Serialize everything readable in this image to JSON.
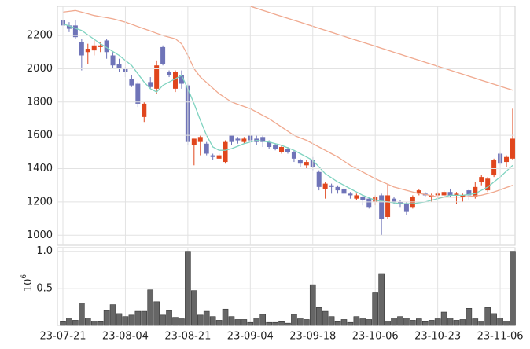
{
  "chart_data": [
    {
      "type": "candlestick",
      "ylim": [
        940,
        2375
      ],
      "yticks": [
        1000,
        1200,
        1400,
        1600,
        1800,
        2000,
        2200
      ],
      "grid": true,
      "up_color": "#e0461d",
      "down_color": "#6f74b8",
      "open": [
        2290,
        2260,
        2260,
        2160,
        2100,
        2110,
        2130,
        2170,
        2080,
        2030,
        2000,
        1940,
        1910,
        1710,
        1920,
        1880,
        2130,
        1980,
        1880,
        1960,
        1900,
        1540,
        1560,
        1550,
        1480,
        1460,
        1440,
        1600,
        1580,
        1560,
        1600,
        1580,
        1590,
        1560,
        1540,
        1500,
        1520,
        1500,
        1450,
        1420,
        1450,
        1380,
        1280,
        1300,
        1290,
        1280,
        1250,
        1220,
        1230,
        1220,
        1200,
        1240,
        1110,
        1220,
        1200,
        1190,
        1170,
        1250,
        1250,
        1230,
        1240,
        1240,
        1260,
        1240,
        1230,
        1270,
        1230,
        1320,
        1270,
        1360,
        1490,
        1440,
        1460
      ],
      "high": [
        2300,
        2280,
        2290,
        2180,
        2150,
        2170,
        2160,
        2180,
        2100,
        2060,
        2010,
        1960,
        1920,
        1800,
        1950,
        2050,
        2140,
        1990,
        1990,
        1990,
        1910,
        1580,
        1600,
        1560,
        1490,
        1490,
        1570,
        1600,
        1590,
        1590,
        1600,
        1600,
        1600,
        1570,
        1550,
        1540,
        1530,
        1510,
        1460,
        1450,
        1470,
        1390,
        1320,
        1310,
        1300,
        1290,
        1260,
        1250,
        1240,
        1230,
        1240,
        1250,
        1310,
        1230,
        1210,
        1200,
        1240,
        1280,
        1260,
        1250,
        1260,
        1270,
        1280,
        1260,
        1250,
        1280,
        1320,
        1360,
        1350,
        1460,
        1500,
        1480,
        1760
      ],
      "low": [
        2240,
        2220,
        2180,
        1990,
        2030,
        2080,
        2100,
        2060,
        2000,
        1980,
        1950,
        1890,
        1770,
        1680,
        1880,
        1850,
        2020,
        1950,
        1860,
        1880,
        1540,
        1420,
        1480,
        1480,
        1450,
        1460,
        1430,
        1540,
        1550,
        1550,
        1560,
        1540,
        1530,
        1520,
        1510,
        1490,
        1490,
        1440,
        1410,
        1400,
        1390,
        1270,
        1220,
        1250,
        1250,
        1230,
        1220,
        1210,
        1180,
        1160,
        1180,
        1000,
        1100,
        1190,
        1170,
        1120,
        1160,
        1240,
        1230,
        1200,
        1220,
        1230,
        1230,
        1190,
        1200,
        1210,
        1220,
        1300,
        1260,
        1350,
        1420,
        1410,
        1450
      ],
      "close": [
        2260,
        2240,
        2190,
        2080,
        2120,
        2140,
        2140,
        2100,
        2020,
        2000,
        1980,
        1900,
        1790,
        1790,
        1890,
        2020,
        2030,
        1960,
        1980,
        1910,
        1560,
        1580,
        1590,
        1490,
        1470,
        1480,
        1560,
        1560,
        1570,
        1580,
        1570,
        1560,
        1560,
        1530,
        1520,
        1530,
        1500,
        1460,
        1430,
        1440,
        1410,
        1290,
        1310,
        1290,
        1270,
        1250,
        1240,
        1240,
        1210,
        1170,
        1230,
        1100,
        1240,
        1200,
        1190,
        1140,
        1230,
        1270,
        1240,
        1240,
        1250,
        1260,
        1240,
        1250,
        1240,
        1240,
        1290,
        1350,
        1340,
        1450,
        1430,
        1470,
        1580
      ],
      "lines": [
        {
          "color": "#7fd3c0",
          "values": [
            2270,
            2257,
            2243,
            2230,
            2203,
            2177,
            2150,
            2127,
            2103,
            2080,
            2050,
            2020,
            1970,
            1920,
            1880,
            1860,
            1900,
            1920,
            1940,
            1960,
            1880,
            1790,
            1690,
            1600,
            1530,
            1510,
            1510,
            1520,
            1535,
            1550,
            1560,
            1570,
            1565,
            1560,
            1550,
            1540,
            1525,
            1510,
            1490,
            1470,
            1450,
            1410,
            1370,
            1345,
            1320,
            1300,
            1280,
            1260,
            1240,
            1225,
            1210,
            1205,
            1200,
            1195,
            1190,
            1190,
            1190,
            1195,
            1200,
            1210,
            1220,
            1230,
            1240,
            1240,
            1240,
            1245,
            1250,
            1270,
            1290,
            1320,
            1350,
            1385,
            1420
          ]
        },
        {
          "color": "#f0a98f",
          "values": [
            2340,
            2345,
            2350,
            2340,
            2330,
            2320,
            2313,
            2307,
            2300,
            2290,
            2280,
            2267,
            2253,
            2240,
            2227,
            2213,
            2200,
            2190,
            2180,
            2150,
            2080,
            2000,
            1950,
            1917,
            1883,
            1850,
            1825,
            1800,
            1787,
            1773,
            1760,
            1740,
            1720,
            1700,
            1675,
            1650,
            1625,
            1600,
            1585,
            1570,
            1550,
            1530,
            1510,
            1490,
            1470,
            1445,
            1420,
            1400,
            1380,
            1360,
            1340,
            1323,
            1307,
            1290,
            1280,
            1270,
            1260,
            1252,
            1245,
            1238,
            1230,
            1230,
            1230,
            1230,
            1230,
            1233,
            1237,
            1240,
            1250,
            1260,
            1273,
            1287,
            1300
          ]
        },
        {
          "color": "#f0a98f",
          "values": [
            null,
            null,
            null,
            null,
            null,
            null,
            null,
            null,
            null,
            null,
            null,
            null,
            null,
            null,
            null,
            null,
            null,
            null,
            null,
            null,
            null,
            null,
            null,
            null,
            null,
            null,
            null,
            null,
            null,
            null,
            2375,
            2363,
            2351,
            2339,
            2327,
            2315,
            2303,
            2291,
            2279,
            2267,
            2255,
            2243,
            2231,
            2219,
            2207,
            2195,
            2183,
            2171,
            2159,
            2147,
            2135,
            2123,
            2111,
            2099,
            2087,
            2075,
            2063,
            2051,
            2039,
            2027,
            2015,
            2003,
            1991,
            1979,
            1967,
            1955,
            1943,
            1931,
            1919,
            1907,
            1895,
            1883,
            1871
          ]
        }
      ]
    },
    {
      "type": "bar",
      "color": "#666666",
      "edge_color": "#333333",
      "y_multiplier": {
        "base": "10",
        "exponent": "6"
      },
      "ylim": [
        0,
        1.05
      ],
      "yticks": [
        0.5,
        {
          "value": 1,
          "label": "1.0"
        }
      ],
      "grid": true,
      "categories": [
        "23-07-21",
        null,
        null,
        null,
        null,
        null,
        null,
        null,
        null,
        null,
        "23-08-04",
        null,
        null,
        null,
        null,
        null,
        null,
        null,
        null,
        null,
        "23-08-21",
        null,
        null,
        null,
        null,
        null,
        null,
        null,
        null,
        null,
        "23-09-04",
        null,
        null,
        null,
        null,
        null,
        null,
        null,
        null,
        null,
        "23-09-18",
        null,
        null,
        null,
        null,
        null,
        null,
        null,
        null,
        null,
        "23-10-06",
        null,
        null,
        null,
        null,
        null,
        null,
        null,
        null,
        null,
        "23-10-23",
        null,
        null,
        null,
        null,
        null,
        null,
        null,
        null,
        null,
        "23-11-06",
        null,
        null
      ],
      "values": [
        0.05,
        0.1,
        0.07,
        0.3,
        0.1,
        0.06,
        0.05,
        0.2,
        0.28,
        0.16,
        0.12,
        0.14,
        0.19,
        0.19,
        0.48,
        0.32,
        0.14,
        0.2,
        0.11,
        0.09,
        1.0,
        0.47,
        0.14,
        0.19,
        0.12,
        0.07,
        0.22,
        0.12,
        0.08,
        0.08,
        0.04,
        0.1,
        0.15,
        0.04,
        0.04,
        0.05,
        0.03,
        0.15,
        0.09,
        0.08,
        0.55,
        0.24,
        0.19,
        0.12,
        0.05,
        0.08,
        0.04,
        0.12,
        0.09,
        0.08,
        0.44,
        0.7,
        0.06,
        0.1,
        0.12,
        0.1,
        0.07,
        0.09,
        0.05,
        0.07,
        0.09,
        0.18,
        0.1,
        0.07,
        0.08,
        0.23,
        0.09,
        0.06,
        0.24,
        0.16,
        0.1,
        0.06,
        1.0
      ]
    }
  ]
}
